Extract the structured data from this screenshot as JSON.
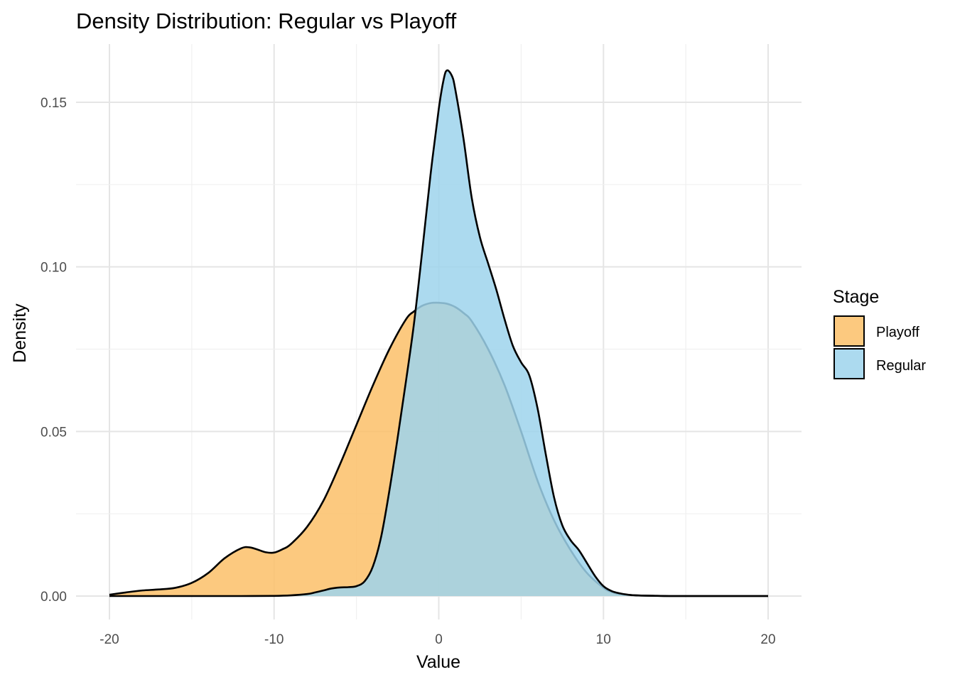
{
  "chart_data": {
    "type": "area",
    "title": "Density Distribution: Regular vs Playoff",
    "xlabel": "Value",
    "ylabel": "Density",
    "xlim": [
      -20,
      20
    ],
    "ylim": [
      0,
      0.16
    ],
    "x_ticks": [
      -20,
      -10,
      0,
      10,
      20
    ],
    "x_tick_labels": [
      "-20",
      "-10",
      "0",
      "10",
      "20"
    ],
    "y_ticks": [
      0,
      0.05,
      0.1,
      0.15
    ],
    "y_tick_labels": [
      "0.00",
      "0.05",
      "0.10",
      "0.15"
    ],
    "grid": true,
    "legend": {
      "title": "Stage",
      "position": "right"
    },
    "series": [
      {
        "name": "Playoff",
        "color": "#fbbf68",
        "x": [
          -20,
          -19,
          -18,
          -17,
          -16,
          -15,
          -14,
          -13,
          -12,
          -11.5,
          -11,
          -10.5,
          -10,
          -9.5,
          -9,
          -8,
          -7,
          -6,
          -5,
          -4,
          -3,
          -2,
          -1.5,
          -1,
          -0.5,
          0,
          0.5,
          1,
          1.5,
          2,
          3,
          4,
          5,
          6,
          7,
          8,
          9,
          10,
          10.5,
          11,
          12,
          13,
          14,
          16,
          18,
          20
        ],
        "y": [
          0.0004,
          0.0011,
          0.0017,
          0.002,
          0.0025,
          0.004,
          0.007,
          0.0115,
          0.0145,
          0.0148,
          0.0141,
          0.0133,
          0.0132,
          0.0142,
          0.0157,
          0.021,
          0.029,
          0.04,
          0.052,
          0.064,
          0.075,
          0.084,
          0.0865,
          0.0882,
          0.089,
          0.0891,
          0.0888,
          0.0878,
          0.086,
          0.0835,
          0.075,
          0.064,
          0.05,
          0.035,
          0.023,
          0.014,
          0.007,
          0.0025,
          0.0012,
          0.0006,
          0.0002,
          0.0001,
          0.0,
          0.0,
          0.0,
          0.0
        ]
      },
      {
        "name": "Regular",
        "color": "#9ed3ec",
        "x": [
          -20,
          -18,
          -16,
          -14,
          -12,
          -10,
          -9,
          -8,
          -7.5,
          -7,
          -6.5,
          -6,
          -5.5,
          -5,
          -4.5,
          -4,
          -3.5,
          -3,
          -2.5,
          -2,
          -1.5,
          -1,
          -0.5,
          0,
          0.3,
          0.5,
          0.8,
          1,
          1.5,
          2,
          2.5,
          3,
          3.5,
          4,
          4.5,
          5,
          5.5,
          6,
          6.5,
          7,
          7.5,
          8,
          8.5,
          9,
          9.5,
          10,
          10.5,
          11,
          11.5,
          12,
          14,
          16,
          18,
          20
        ],
        "y": [
          0,
          0,
          0,
          0,
          0,
          5e-05,
          0.0002,
          0.0006,
          0.0011,
          0.0017,
          0.0023,
          0.0026,
          0.0027,
          0.003,
          0.0045,
          0.009,
          0.018,
          0.032,
          0.048,
          0.065,
          0.083,
          0.105,
          0.128,
          0.148,
          0.157,
          0.1597,
          0.158,
          0.154,
          0.139,
          0.121,
          0.109,
          0.101,
          0.093,
          0.084,
          0.076,
          0.071,
          0.067,
          0.057,
          0.043,
          0.03,
          0.0215,
          0.017,
          0.014,
          0.01,
          0.006,
          0.003,
          0.0015,
          0.0008,
          0.0004,
          0.0002,
          0.0,
          0.0,
          0.0,
          0.0
        ]
      }
    ]
  }
}
